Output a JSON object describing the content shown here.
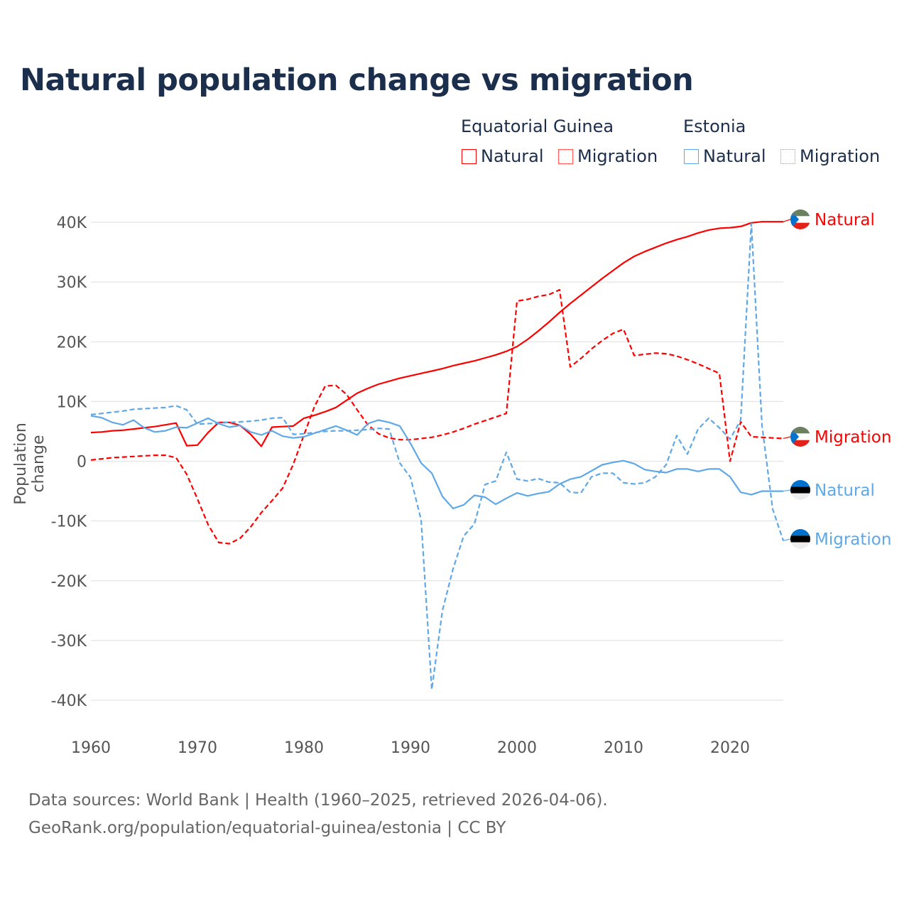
{
  "title": "Natural population change vs migration",
  "legend": {
    "groups": [
      {
        "name": "Equatorial Guinea",
        "color": "#ff0000",
        "items": [
          "Natural",
          "Migration"
        ]
      },
      {
        "name": "Estonia",
        "color": "#5fa8e8",
        "items": [
          "Natural",
          "Migration"
        ]
      }
    ]
  },
  "footer": {
    "line1": "Data sources: World Bank | Health (1960–2025, retrieved 2026-04-06).",
    "line2": "GeoRank.org/population/equatorial-guinea/estonia | CC BY"
  },
  "chart_data": {
    "type": "line",
    "title": "Natural population change vs migration",
    "xlabel": "",
    "ylabel": "Population change",
    "xlim": [
      1960,
      2025
    ],
    "ylim": [
      -40000,
      40000
    ],
    "x_ticks": [
      1960,
      1970,
      1980,
      1990,
      2000,
      2010,
      2020
    ],
    "x_tick_labels": [
      "1960",
      "1970",
      "1980",
      "1990",
      "2000",
      "2010",
      "2020"
    ],
    "y_ticks": [
      40000,
      30000,
      20000,
      10000,
      0,
      -10000,
      -20000,
      -30000,
      -40000
    ],
    "y_tick_labels": [
      "40K",
      "30K",
      "20K",
      "10K",
      "0",
      "-10K",
      "-20K",
      "-30K",
      "-40K"
    ],
    "grid": true,
    "legend_position": "top-right",
    "x_start": 1960,
    "series": [
      {
        "name": "Natural",
        "country": "Equatorial Guinea",
        "color": "#ff0000",
        "dash": false,
        "end_label": "Natural",
        "values_k": [
          4.8,
          4.9,
          5.1,
          5.2,
          5.4,
          5.6,
          5.8,
          6.1,
          6.4,
          2.6,
          2.7,
          4.8,
          6.5,
          6.5,
          6.0,
          4.5,
          2.5,
          5.7,
          5.8,
          5.9,
          7.2,
          7.7,
          8.3,
          9.0,
          10.2,
          11.4,
          12.2,
          12.9,
          13.4,
          13.9,
          14.3,
          14.7,
          15.1,
          15.5,
          16.0,
          16.4,
          16.8,
          17.3,
          17.8,
          18.4,
          19.2,
          20.4,
          21.8,
          23.3,
          24.9,
          26.4,
          27.8,
          29.2,
          30.6,
          31.9,
          33.2,
          34.3,
          35.1,
          35.8,
          36.5,
          37.1,
          37.6,
          38.2,
          38.7,
          39.0,
          39.1,
          39.3,
          39.9,
          40.1,
          40.1,
          40.1
        ]
      },
      {
        "name": "Migration",
        "country": "Equatorial Guinea",
        "color": "#ff0000",
        "dash": true,
        "end_label": "Migration",
        "values_k": [
          0.2,
          0.4,
          0.6,
          0.7,
          0.8,
          0.9,
          1.0,
          1.0,
          0.6,
          -2.2,
          -6.3,
          -10.6,
          -13.6,
          -13.8,
          -12.9,
          -11.0,
          -8.6,
          -6.6,
          -4.5,
          -0.5,
          4.4,
          9.2,
          12.6,
          12.7,
          11.2,
          8.6,
          6.1,
          4.6,
          3.9,
          3.6,
          3.6,
          3.8,
          4.0,
          4.4,
          4.9,
          5.5,
          6.2,
          6.8,
          7.4,
          8.0,
          26.8,
          27.1,
          27.6,
          27.9,
          28.7,
          15.8,
          17.2,
          18.8,
          20.2,
          21.4,
          22.1,
          17.7,
          17.9,
          18.1,
          18.0,
          17.6,
          17.0,
          16.3,
          15.5,
          14.7,
          0.0,
          6.6,
          4.1,
          4.0,
          3.9,
          3.8
        ]
      },
      {
        "name": "Natural",
        "country": "Estonia",
        "color": "#5fa8e8",
        "dash": false,
        "end_label": "Natural",
        "values_k": [
          7.6,
          7.3,
          6.5,
          6.1,
          6.9,
          5.6,
          4.9,
          5.1,
          5.7,
          5.6,
          6.4,
          7.2,
          6.3,
          5.7,
          6.0,
          4.9,
          4.4,
          5.1,
          4.2,
          3.9,
          4.1,
          4.7,
          5.3,
          5.9,
          5.2,
          4.4,
          6.3,
          6.9,
          6.5,
          5.9,
          3.0,
          -0.3,
          -2.0,
          -5.9,
          -7.9,
          -7.3,
          -5.7,
          -6.0,
          -7.2,
          -6.2,
          -5.3,
          -5.8,
          -5.4,
          -5.1,
          -3.8,
          -3.0,
          -2.6,
          -1.6,
          -0.6,
          -0.2,
          0.1,
          -0.4,
          -1.4,
          -1.7,
          -1.9,
          -1.3,
          -1.3,
          -1.7,
          -1.3,
          -1.3,
          -2.6,
          -5.2,
          -5.6,
          -5.0,
          -5.0,
          -5.0
        ]
      },
      {
        "name": "Migration",
        "country": "Estonia",
        "color": "#5fa8e8",
        "dash": true,
        "end_label": "Migration",
        "values_k": [
          7.8,
          8.0,
          8.2,
          8.4,
          8.7,
          8.8,
          8.9,
          9.0,
          9.3,
          8.6,
          6.2,
          6.3,
          6.4,
          6.5,
          6.6,
          6.7,
          6.9,
          7.2,
          7.3,
          4.5,
          4.6,
          4.8,
          5.0,
          5.1,
          5.1,
          5.2,
          5.3,
          5.5,
          5.4,
          -0.3,
          -2.7,
          -9.8,
          -38.2,
          -25.0,
          -18.0,
          -12.5,
          -10.5,
          -3.9,
          -3.3,
          1.5,
          -3.0,
          -3.3,
          -2.9,
          -3.5,
          -3.6,
          -5.2,
          -5.3,
          -2.6,
          -2.0,
          -2.0,
          -3.6,
          -3.8,
          -3.6,
          -2.6,
          -0.6,
          4.3,
          1.2,
          5.4,
          7.2,
          5.6,
          3.7,
          6.9,
          39.8,
          6.0,
          -8.0,
          -13.3
        ]
      }
    ]
  }
}
